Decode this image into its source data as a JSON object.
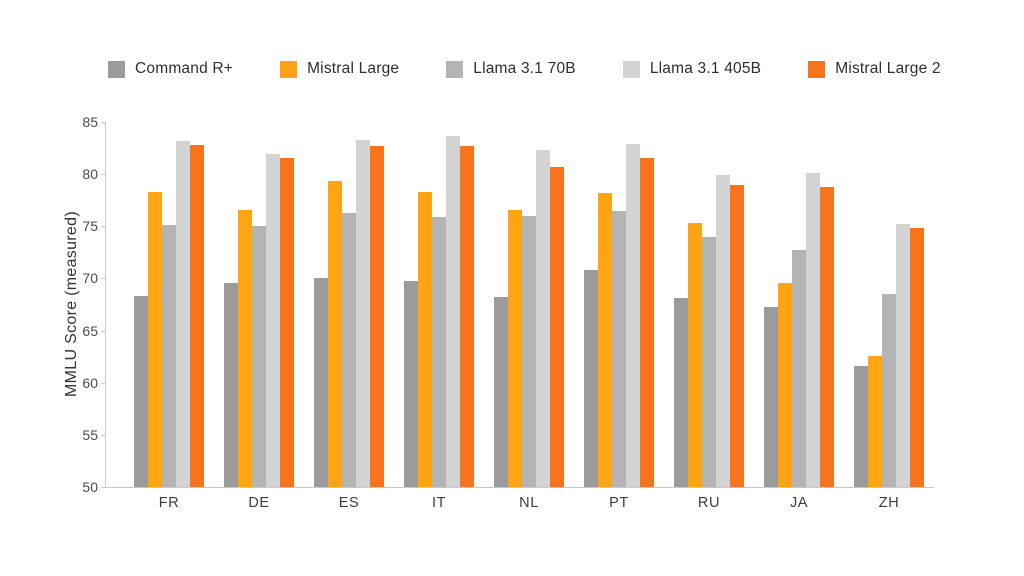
{
  "chart_data": {
    "type": "bar",
    "title": "",
    "xlabel": "",
    "ylabel": "MMLU Score (measured)",
    "ylim": [
      50,
      85
    ],
    "yticks": [
      50,
      55,
      60,
      65,
      70,
      75,
      80,
      85
    ],
    "grid": false,
    "legend_position": "top",
    "categories": [
      "FR",
      "DE",
      "ES",
      "IT",
      "NL",
      "PT",
      "RU",
      "JA",
      "ZH"
    ],
    "series": [
      {
        "name": "Command R+",
        "color": "#9b9b9b",
        "values": [
          68.3,
          69.6,
          70.0,
          69.8,
          68.2,
          70.8,
          68.1,
          67.3,
          61.6
        ]
      },
      {
        "name": "Mistral Large",
        "color": "#ffa412",
        "values": [
          78.3,
          76.6,
          79.3,
          78.3,
          76.6,
          78.2,
          75.3,
          69.6,
          62.6
        ]
      },
      {
        "name": "Llama 3.1 70B",
        "color": "#b4b4b4",
        "values": [
          75.1,
          75.0,
          76.3,
          75.9,
          76.0,
          76.5,
          74.0,
          72.7,
          68.5
        ]
      },
      {
        "name": "Llama 3.1 405B",
        "color": "#d3d3d3",
        "values": [
          83.2,
          81.9,
          83.3,
          83.7,
          82.3,
          82.9,
          79.9,
          80.1,
          75.2
        ]
      },
      {
        "name": "Mistral Large 2",
        "color": "#f7741d",
        "values": [
          82.8,
          81.6,
          82.7,
          82.7,
          80.7,
          81.6,
          79.0,
          78.8,
          74.8
        ]
      }
    ]
  }
}
